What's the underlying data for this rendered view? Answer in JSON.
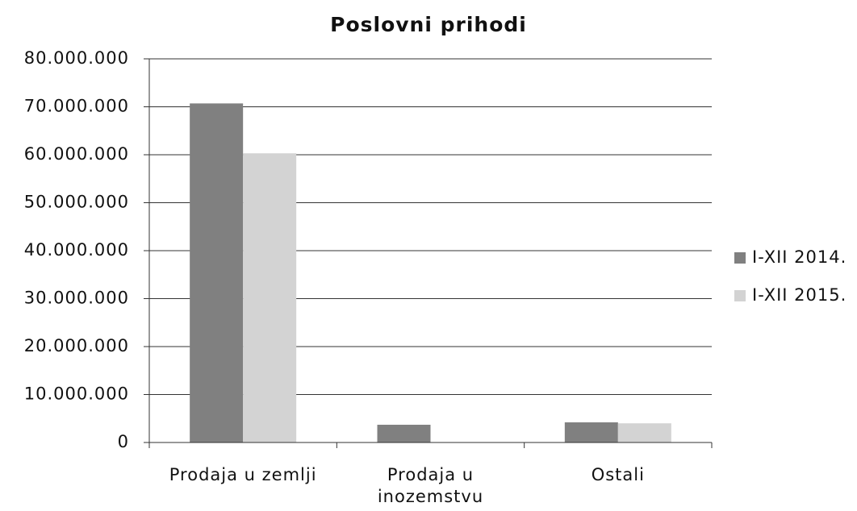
{
  "chart_data": {
    "type": "bar",
    "title": "Poslovni prihodi",
    "categories": [
      "Prodaja u zemlji",
      "Prodaja u inozemstvu",
      "Ostali"
    ],
    "series": [
      {
        "name": "I-XII 2014.",
        "color": "#808080",
        "values": [
          70700000,
          3700000,
          4200000
        ]
      },
      {
        "name": "I-XII 2015.",
        "color": "#d3d3d3",
        "values": [
          60300000,
          0,
          4000000
        ]
      }
    ],
    "ylim": [
      0,
      80000000
    ],
    "yticks": [
      0,
      {
        "value": 10000000,
        "label": "10.000.000"
      },
      {
        "value": 20000000,
        "label": "20.000.000"
      },
      {
        "value": 30000000,
        "label": "30.000.000"
      },
      {
        "value": 40000000,
        "label": "40.000.000"
      },
      {
        "value": 50000000,
        "label": "50.000.000"
      },
      {
        "value": 60000000,
        "label": "60.000.000"
      },
      {
        "value": 70000000,
        "label": "70.000.000"
      },
      {
        "value": 80000000,
        "label": "80.000.000"
      }
    ],
    "grid": true,
    "legend": "right"
  }
}
